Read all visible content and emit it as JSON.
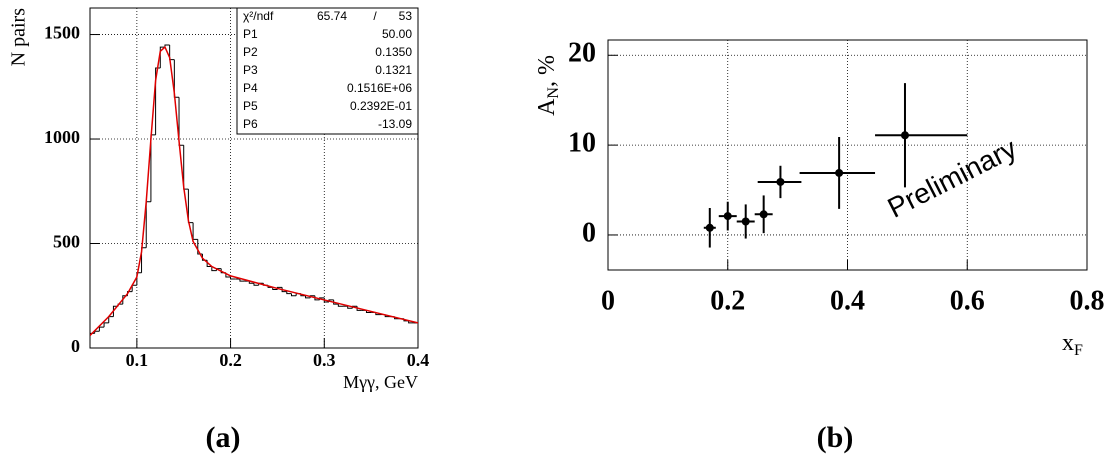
{
  "chart_data": [
    {
      "type": "histogram",
      "caption": "(a)",
      "ylabel": "N pairs",
      "xlabel": "Mγγ, GeV",
      "xlim": [
        0.05,
        0.4
      ],
      "ylim": [
        0,
        1627
      ],
      "grid": true,
      "xticks": [
        0.1,
        0.2,
        0.3,
        0.4
      ],
      "yticks": [
        0,
        500,
        1000,
        1500
      ],
      "color": "#000000",
      "bins": [
        0.05,
        0.055,
        0.06,
        0.065,
        0.07,
        0.075,
        0.08,
        0.085,
        0.09,
        0.095,
        0.1,
        0.105,
        0.11,
        0.115,
        0.12,
        0.125,
        0.13,
        0.135,
        0.14,
        0.145,
        0.15,
        0.155,
        0.16,
        0.165,
        0.17,
        0.175,
        0.18,
        0.185,
        0.19,
        0.195,
        0.2,
        0.205,
        0.21,
        0.215,
        0.22,
        0.225,
        0.23,
        0.235,
        0.24,
        0.245,
        0.25,
        0.255,
        0.26,
        0.265,
        0.27,
        0.275,
        0.28,
        0.285,
        0.29,
        0.295,
        0.3,
        0.305,
        0.31,
        0.315,
        0.32,
        0.325,
        0.33,
        0.335,
        0.34,
        0.345,
        0.35,
        0.355,
        0.36,
        0.365,
        0.37,
        0.375,
        0.38,
        0.385,
        0.39,
        0.395,
        0.4
      ],
      "values": [
        70,
        80,
        100,
        120,
        150,
        200,
        210,
        250,
        270,
        300,
        360,
        480,
        700,
        1020,
        1340,
        1440,
        1450,
        1380,
        1200,
        970,
        760,
        600,
        520,
        450,
        420,
        390,
        370,
        380,
        360,
        340,
        330,
        330,
        320,
        320,
        310,
        300,
        310,
        300,
        290,
        280,
        290,
        270,
        260,
        250,
        260,
        250,
        240,
        250,
        230,
        240,
        220,
        230,
        210,
        200,
        200,
        190,
        200,
        180,
        180,
        170,
        170,
        160,
        160,
        150,
        150,
        140,
        140,
        130,
        120,
        120
      ],
      "fit": {
        "color": "#e00000",
        "x": [
          0.05,
          0.07,
          0.09,
          0.1,
          0.105,
          0.11,
          0.115,
          0.12,
          0.125,
          0.13,
          0.135,
          0.14,
          0.145,
          0.15,
          0.155,
          0.16,
          0.17,
          0.18,
          0.2,
          0.25,
          0.3,
          0.35,
          0.4
        ],
        "values": [
          60,
          150,
          260,
          340,
          460,
          700,
          1000,
          1280,
          1420,
          1440,
          1390,
          1220,
          990,
          770,
          610,
          510,
          430,
          390,
          345,
          285,
          230,
          175,
          120
        ]
      },
      "stats": {
        "chi2_label": "χ²/ndf",
        "chi2": "65.74",
        "sep": "/",
        "ndf": "53",
        "params": [
          {
            "name": "P1",
            "value": "50.00"
          },
          {
            "name": "P2",
            "value": "0.1350"
          },
          {
            "name": "P3",
            "value": "0.1321"
          },
          {
            "name": "P4",
            "value": "0.1516E+06"
          },
          {
            "name": "P5",
            "value": "0.2392E-01"
          },
          {
            "name": "P6",
            "value": "-13.09"
          }
        ]
      }
    },
    {
      "type": "errorbar",
      "caption": "(b)",
      "ylabel": "A",
      "ylabel_sub": "N",
      "ylabel_suffix": ", %",
      "xlabel": "x",
      "xlabel_sub": "F",
      "annotation": "Preliminary",
      "annotation_color": "#ee1111",
      "xlim": [
        0,
        0.8
      ],
      "ylim": [
        -3.9,
        21.7
      ],
      "grid": true,
      "xticks": [
        0,
        0.2,
        0.4,
        0.6,
        0.8
      ],
      "yticks": [
        0,
        10,
        20
      ],
      "color": "#000000",
      "x": [
        0.17,
        0.2,
        0.23,
        0.26,
        0.288,
        0.386,
        0.496
      ],
      "values": [
        0.8,
        2.1,
        1.5,
        2.3,
        5.9,
        6.9,
        11.1
      ],
      "errors": [
        2.2,
        1.6,
        1.9,
        2.1,
        1.8,
        4.0,
        5.8
      ],
      "xerr_low": [
        0.01,
        0.015,
        0.015,
        0.015,
        0.038,
        0.066,
        0.05
      ],
      "xerr_high": [
        0.01,
        0.015,
        0.015,
        0.015,
        0.035,
        0.06,
        0.104
      ]
    }
  ]
}
